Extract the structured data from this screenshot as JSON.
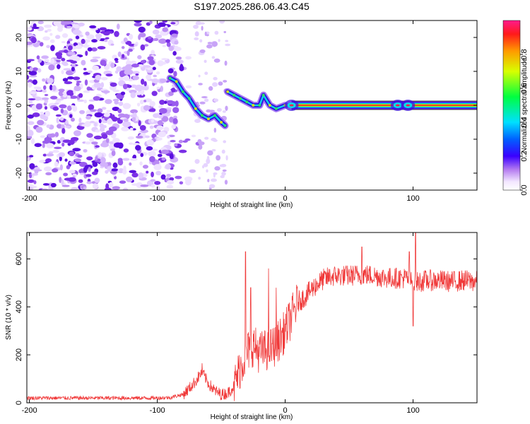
{
  "title": "S197.2025.286.06.43.C45",
  "chart_data": [
    {
      "type": "heatmap",
      "name": "spectrogram",
      "xlabel": "Height of straight line (km)",
      "ylabel": "Frequency (Hz)",
      "xlim": [
        -202,
        150
      ],
      "ylim": [
        -25,
        25
      ],
      "xticks": [
        -200,
        -100,
        0,
        100
      ],
      "yticks": [
        -20,
        -10,
        0,
        10,
        20
      ],
      "colorbar": {
        "label": "Normalized spectral amplitude",
        "range": [
          0,
          1
        ],
        "ticks": [
          0.0,
          0.2,
          0.4,
          0.6,
          0.8
        ],
        "tick_labels": [
          "0.0",
          "0.2",
          "0.4",
          "0.6",
          "0.8"
        ]
      },
      "features": {
        "noise_region_x": [
          -202,
          -85
        ],
        "scatter_speckle_x": [
          -70,
          -45
        ],
        "descending_trace": [
          {
            "x": -90,
            "y": 8
          },
          {
            "x": -85,
            "y": 7
          },
          {
            "x": -80,
            "y": 4
          },
          {
            "x": -75,
            "y": 2
          },
          {
            "x": -70,
            "y": -1
          },
          {
            "x": -65,
            "y": -3
          },
          {
            "x": -60,
            "y": -4
          },
          {
            "x": -55,
            "y": -3
          },
          {
            "x": -50,
            "y": -5
          },
          {
            "x": -47,
            "y": -6
          }
        ],
        "upper_trace": [
          {
            "x": -45,
            "y": 4
          },
          {
            "x": -40,
            "y": 3
          },
          {
            "x": -35,
            "y": 2
          },
          {
            "x": -30,
            "y": 1
          },
          {
            "x": -25,
            "y": 0
          },
          {
            "x": -20,
            "y": 0
          },
          {
            "x": -17,
            "y": 3
          },
          {
            "x": -12,
            "y": 0
          },
          {
            "x": -7,
            "y": -1
          },
          {
            "x": 0,
            "y": 0
          }
        ],
        "zero_line": {
          "x_start": 5,
          "x_end": 150,
          "y": 0,
          "amplitude": 1.0
        },
        "hot_blobs_x": [
          5,
          88,
          96
        ]
      }
    },
    {
      "type": "line",
      "name": "snr",
      "xlabel": "Height of straight line (km)",
      "ylabel": "SNR (10 * v/v)",
      "xlim": [
        -202,
        150
      ],
      "ylim": [
        0,
        710
      ],
      "xticks": [
        -200,
        -100,
        0,
        100
      ],
      "yticks": [
        0,
        200,
        400,
        600
      ],
      "color": "#f03a3a",
      "series": [
        {
          "name": "SNR",
          "x": [
            -202,
            -180,
            -160,
            -140,
            -120,
            -100,
            -90,
            -80,
            -75,
            -70,
            -65,
            -60,
            -55,
            -50,
            -45,
            -40,
            -35,
            -30,
            -25,
            -20,
            -15,
            -10,
            -5,
            0,
            5,
            10,
            15,
            20,
            25,
            30,
            35,
            40,
            50,
            60,
            70,
            80,
            90,
            95,
            100,
            110,
            120,
            130,
            140,
            150
          ],
          "values": [
            20,
            20,
            20,
            20,
            20,
            20,
            22,
            35,
            60,
            90,
            130,
            80,
            50,
            35,
            40,
            70,
            150,
            210,
            240,
            210,
            220,
            230,
            260,
            300,
            360,
            420,
            440,
            470,
            495,
            515,
            525,
            530,
            530,
            535,
            530,
            520,
            520,
            520,
            500,
            510,
            510,
            505,
            510,
            505
          ]
        }
      ],
      "spikes": [
        {
          "x": -65,
          "y": 165
        },
        {
          "x": -31,
          "y": 630
        },
        {
          "x": -27,
          "y": 480
        },
        {
          "x": -13,
          "y": 560
        },
        {
          "x": -7,
          "y": 480
        },
        {
          "x": 60,
          "y": 650
        },
        {
          "x": 97,
          "y": 630
        },
        {
          "x": 102,
          "y": 710
        },
        {
          "x": 100,
          "y": 320
        }
      ]
    }
  ]
}
